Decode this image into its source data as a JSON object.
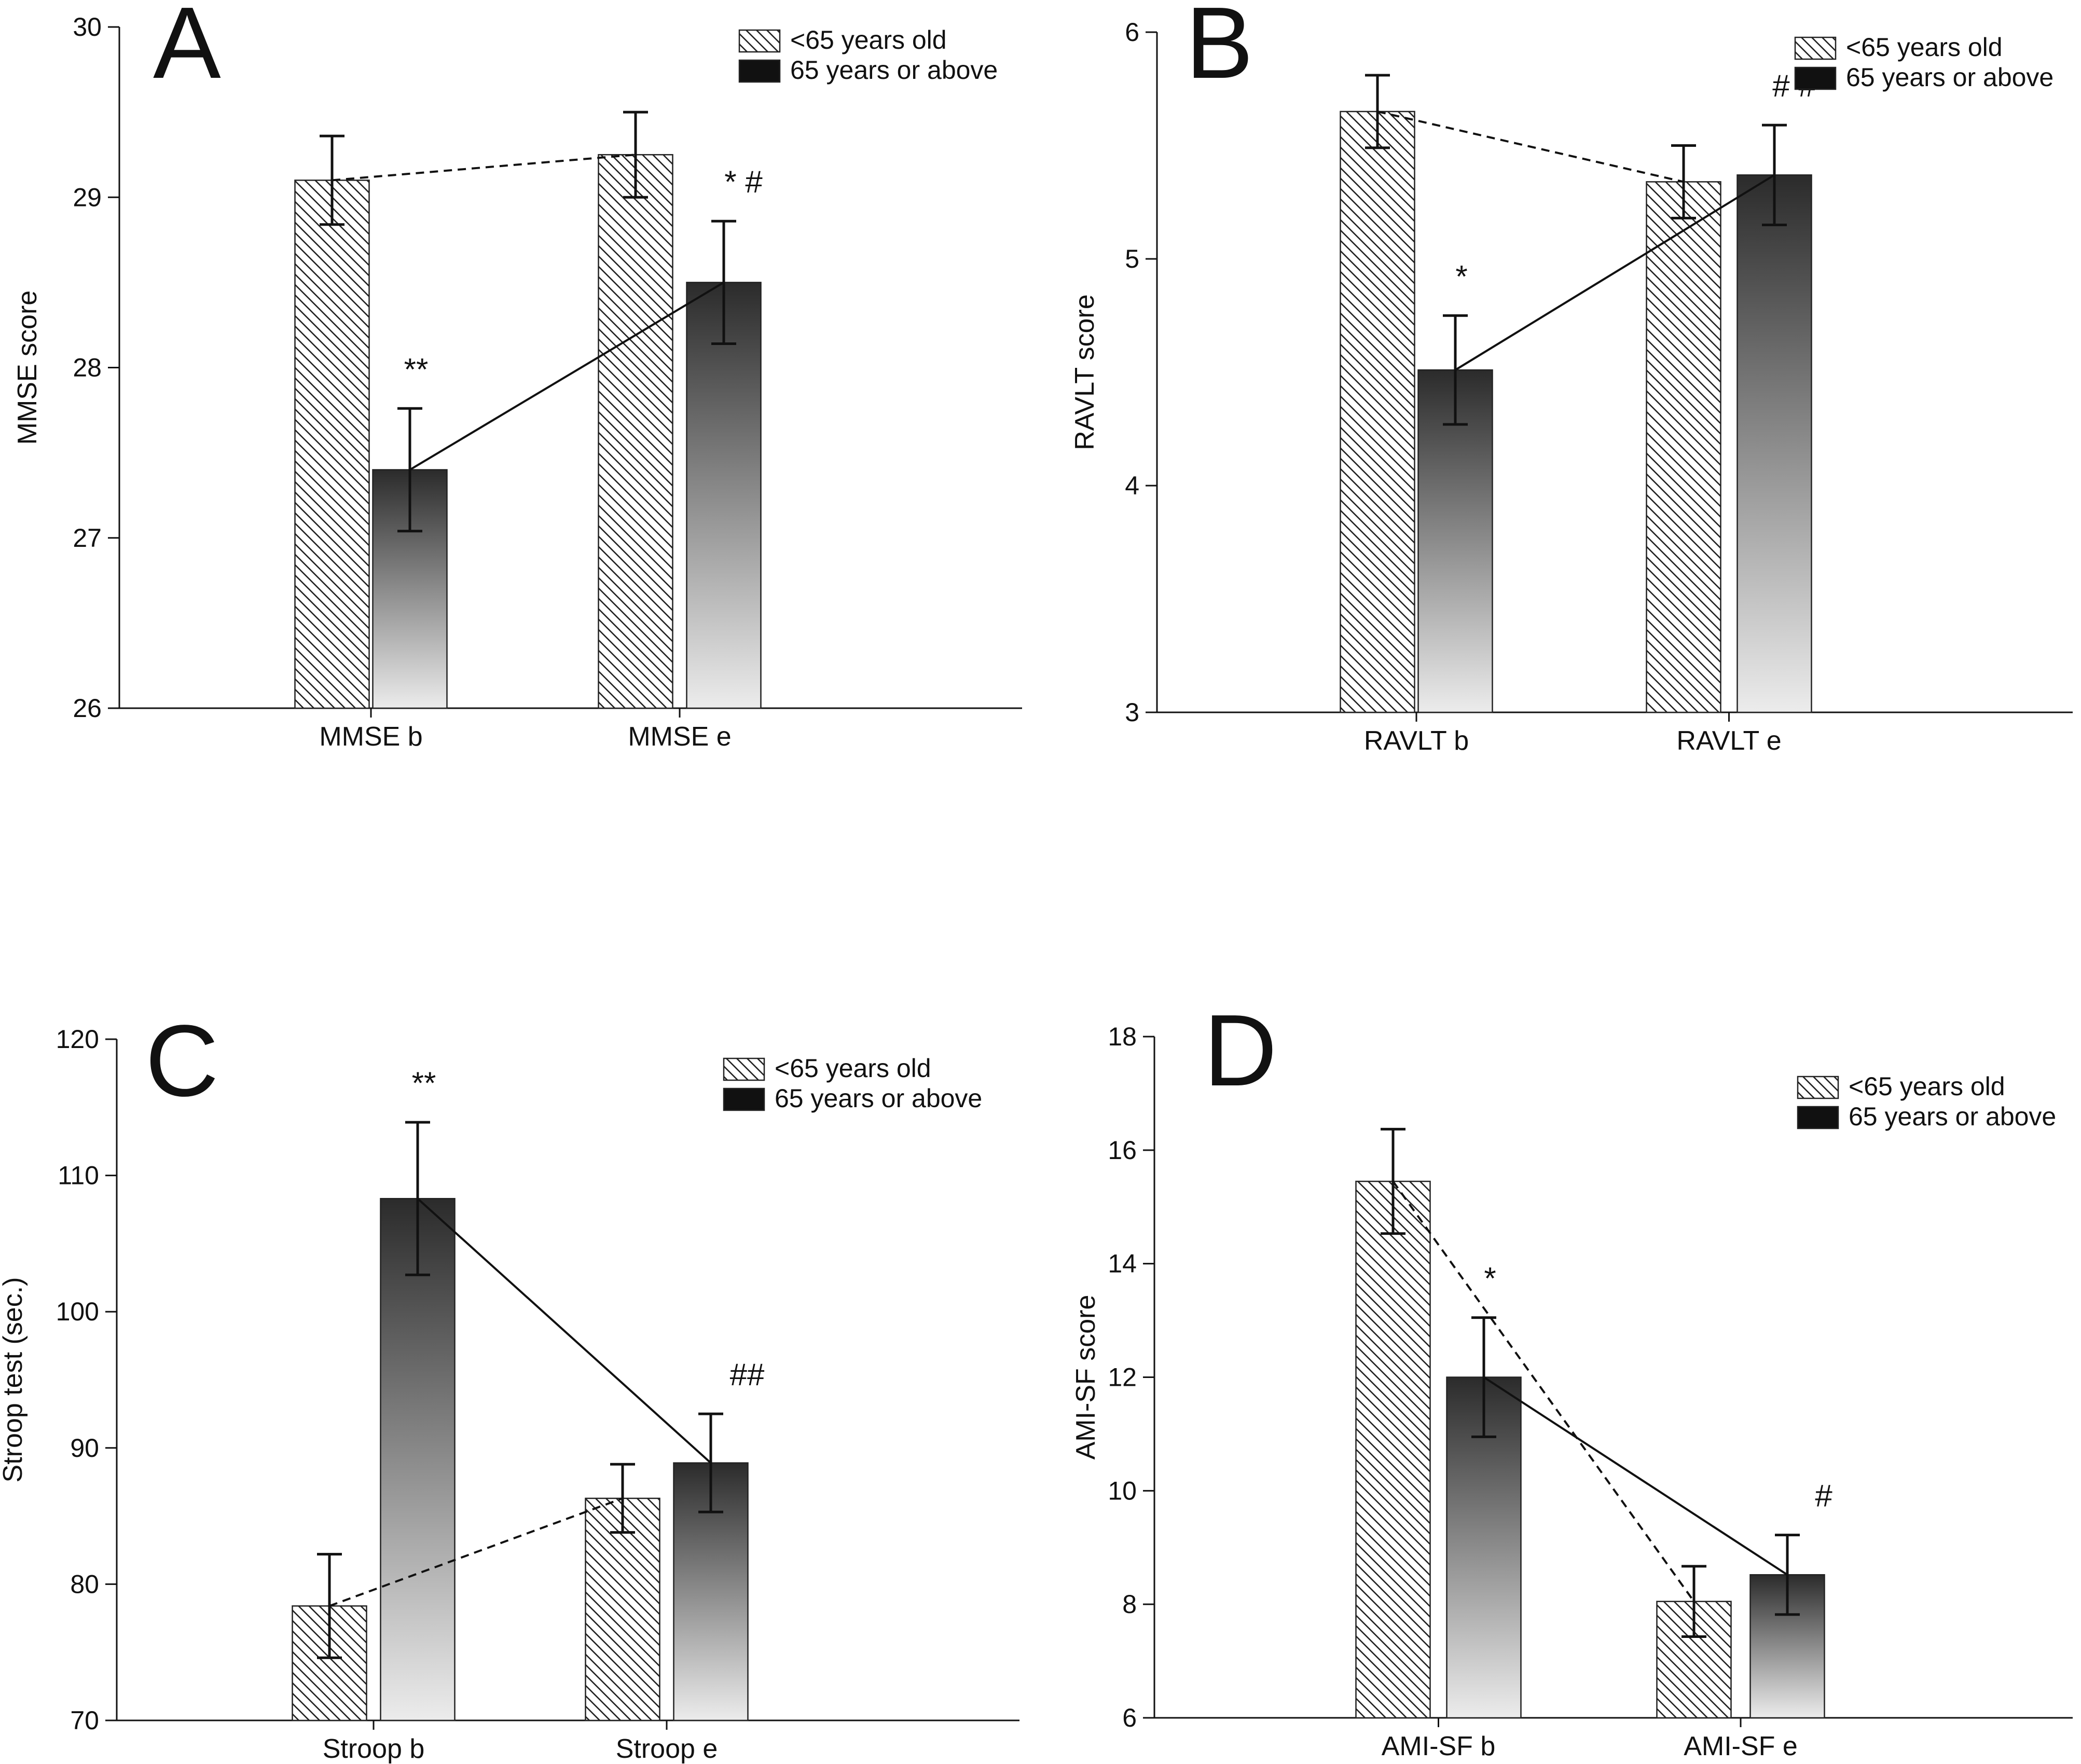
{
  "figure": {
    "panels": [
      "A",
      "B",
      "C",
      "D"
    ]
  },
  "colors": {
    "axis": "#111111",
    "bar_edge": "#222222",
    "hatch": "#222222",
    "gradient_dark": "#2b2b2b",
    "gradient_light": "#ececec"
  },
  "chart_data": [
    {
      "panel": "A",
      "type": "bar",
      "title": "",
      "xlabel": "",
      "ylabel": "MMSE score",
      "ylim": [
        26,
        30
      ],
      "yticks": [
        26,
        27,
        28,
        29,
        30
      ],
      "grid": false,
      "legend_position": "top-right",
      "categories": [
        "MMSE b",
        "MMSE e"
      ],
      "series": [
        {
          "name": "<65 years old",
          "pattern": "hatch",
          "values": [
            29.1,
            29.25
          ],
          "errors": [
            0.26,
            0.25
          ],
          "connector": "dashed"
        },
        {
          "name": "65 years or above",
          "pattern": "gradient",
          "values": [
            27.4,
            28.5
          ],
          "errors": [
            0.36,
            0.36
          ],
          "connector": "solid"
        }
      ],
      "annotations": [
        {
          "text": "**",
          "category": 0,
          "series": 1
        },
        {
          "text": "* #",
          "category": 1,
          "series": 1
        }
      ]
    },
    {
      "panel": "B",
      "type": "bar",
      "title": "",
      "xlabel": "",
      "ylabel": "RAVLT score",
      "ylim": [
        3,
        6
      ],
      "yticks": [
        3,
        4,
        5,
        6
      ],
      "grid": false,
      "legend_position": "top-right",
      "categories": [
        "RAVLT b",
        "RAVLT e"
      ],
      "series": [
        {
          "name": "<65 years old",
          "pattern": "hatch",
          "values": [
            5.65,
            5.34
          ],
          "errors": [
            0.16,
            0.16
          ],
          "connector": "dashed"
        },
        {
          "name": "65 years or above",
          "pattern": "gradient",
          "values": [
            4.51,
            5.37
          ],
          "errors": [
            0.24,
            0.22
          ],
          "connector": "solid"
        }
      ],
      "annotations": [
        {
          "text": "*",
          "category": 0,
          "series": 1
        },
        {
          "text": "# #",
          "category": 1,
          "series": 1
        }
      ]
    },
    {
      "panel": "C",
      "type": "bar",
      "title": "",
      "xlabel": "",
      "ylabel": "Stroop test (sec.)",
      "ylim": [
        70,
        120
      ],
      "yticks": [
        70,
        80,
        90,
        100,
        110,
        120
      ],
      "grid": false,
      "legend_position": "top-right",
      "categories": [
        "Stroop b",
        "Stroop e"
      ],
      "series": [
        {
          "name": "<65 years old",
          "pattern": "hatch",
          "values": [
            78.4,
            86.3
          ],
          "errors": [
            3.8,
            2.5
          ],
          "connector": "dashed"
        },
        {
          "name": "65 years or above",
          "pattern": "gradient",
          "values": [
            108.3,
            88.9
          ],
          "errors": [
            5.6,
            3.6
          ],
          "connector": "solid"
        }
      ],
      "annotations": [
        {
          "text": "**",
          "category": 0,
          "series": 1
        },
        {
          "text": "##",
          "category": 1,
          "series": 1
        }
      ]
    },
    {
      "panel": "D",
      "type": "bar",
      "title": "",
      "xlabel": "",
      "ylabel": "AMI-SF score",
      "ylim": [
        6,
        18
      ],
      "yticks": [
        6,
        8,
        10,
        12,
        14,
        16,
        18
      ],
      "grid": false,
      "legend_position": "top-right",
      "categories": [
        "AMI-SF b",
        "AMI-SF e"
      ],
      "series": [
        {
          "name": "<65 years old",
          "pattern": "hatch",
          "values": [
            15.45,
            8.05
          ],
          "errors": [
            0.92,
            0.62
          ],
          "connector": "dashed"
        },
        {
          "name": "65 years or above",
          "pattern": "gradient",
          "values": [
            12.0,
            8.52
          ],
          "errors": [
            1.05,
            0.7
          ],
          "connector": "solid"
        }
      ],
      "annotations": [
        {
          "text": "*",
          "category": 0,
          "series": 1
        },
        {
          "text": "#",
          "category": 1,
          "series": 1
        }
      ]
    }
  ]
}
